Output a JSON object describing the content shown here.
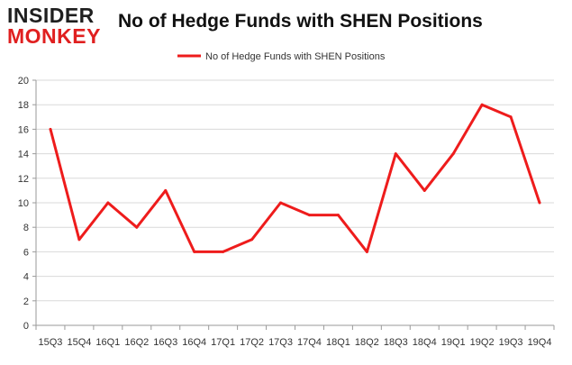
{
  "brand": {
    "line1": "INSIDER",
    "line2": "MONKEY"
  },
  "colors": {
    "series": "#ee1c1c",
    "grid": "#d9d9d9",
    "axis": "#9a9a9a",
    "text": "#333333",
    "brand_dark": "#1f1f1f",
    "brand_red": "#e02020"
  },
  "chart_data": {
    "type": "line",
    "title": "No of Hedge Funds with SHEN Positions",
    "xlabel": "",
    "ylabel": "",
    "ylim": [
      0,
      20
    ],
    "y_ticks": [
      0,
      2,
      4,
      6,
      8,
      10,
      12,
      14,
      16,
      18,
      20
    ],
    "grid": true,
    "legend_position": "top-center",
    "categories": [
      "15Q3",
      "15Q4",
      "16Q1",
      "16Q2",
      "16Q3",
      "16Q4",
      "17Q1",
      "17Q2",
      "17Q3",
      "17Q4",
      "18Q1",
      "18Q2",
      "18Q3",
      "18Q4",
      "19Q1",
      "19Q2",
      "19Q3",
      "19Q4"
    ],
    "series": [
      {
        "name": "No of Hedge Funds with SHEN Positions",
        "values": [
          16,
          7,
          10,
          8,
          11,
          6,
          6,
          7,
          10,
          9,
          9,
          6,
          14,
          11,
          14,
          18,
          17,
          10
        ]
      }
    ]
  }
}
